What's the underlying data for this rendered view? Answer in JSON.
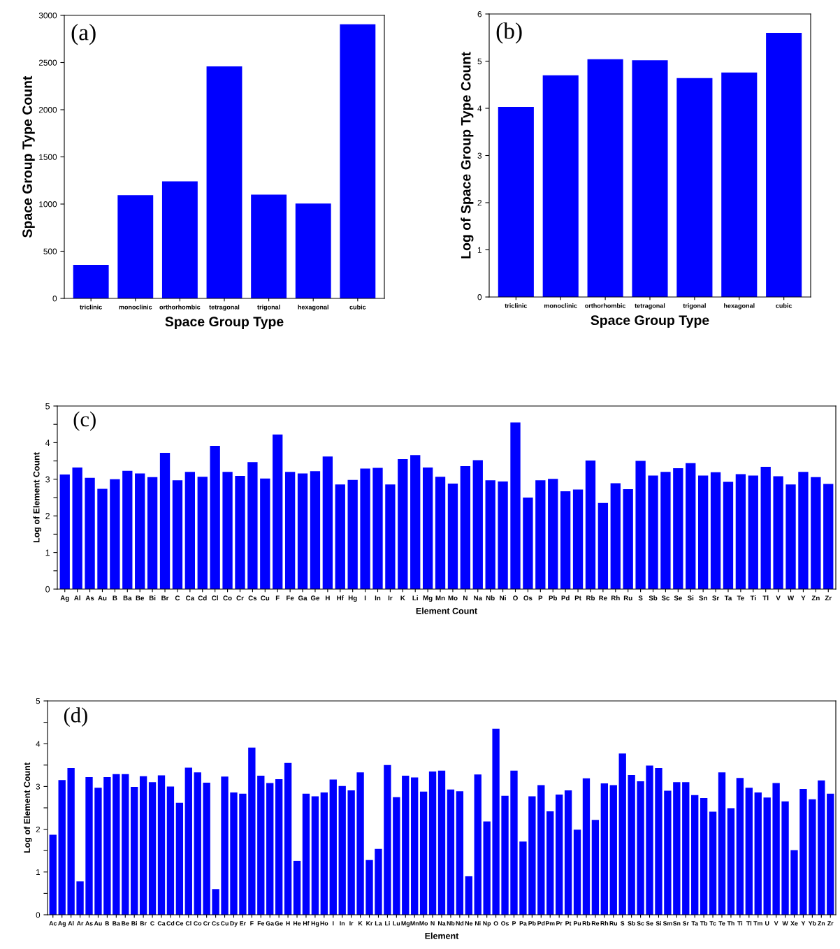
{
  "chart_data": [
    {
      "type": "bar",
      "ylabel": "Space Group Type Count",
      "xlabel": "Space Group Type",
      "annotations": [
        "(a)"
      ],
      "categories": [
        "triclinic",
        "monoclinic",
        "orthorhombic",
        "tetragonal",
        "trigonal",
        "hexagonal",
        "cubic"
      ],
      "values": [
        355,
        1095,
        1240,
        2460,
        1100,
        1005,
        2905
      ],
      "color": "#0000ff",
      "ylim": [
        0,
        3000
      ],
      "yticks": [
        0,
        500,
        1000,
        1500,
        2000,
        2500,
        3000
      ],
      "grid": false
    },
    {
      "type": "bar",
      "ylabel": "Log of Space Group Type Count",
      "xlabel": "Space Group Type",
      "annotations": [
        "(b)"
      ],
      "categories": [
        "triclinic",
        "monoclinic",
        "orthorhombic",
        "tetragonal",
        "trigonal",
        "hexagonal",
        "cubic"
      ],
      "values": [
        4.03,
        4.7,
        5.04,
        5.02,
        4.64,
        4.76,
        5.6
      ],
      "color": "#0000ff",
      "ylim": [
        0,
        6
      ],
      "yticks": [
        0,
        1,
        2,
        3,
        4,
        5,
        6
      ],
      "grid": false
    },
    {
      "type": "bar",
      "ylabel": "Log of Element Count",
      "xlabel": "Element Count",
      "annotations": [
        "(c)"
      ],
      "categories": [
        "Ag",
        "Al",
        "As",
        "Au",
        "B",
        "Ba",
        "Be",
        "Bi",
        "Br",
        "C",
        "Ca",
        "Cd",
        "Cl",
        "Co",
        "Cr",
        "Cs",
        "Cu",
        "F",
        "Fe",
        "Ga",
        "Ge",
        "H",
        "Hf",
        "Hg",
        "I",
        "In",
        "Ir",
        "K",
        "Li",
        "Mg",
        "Mn",
        "Mo",
        "N",
        "Na",
        "Nb",
        "Ni",
        "O",
        "Os",
        "P",
        "Pb",
        "Pd",
        "Pt",
        "Rb",
        "Re",
        "Rh",
        "Ru",
        "S",
        "Sb",
        "Sc",
        "Se",
        "Si",
        "Sn",
        "Sr",
        "Ta",
        "Te",
        "Ti",
        "Tl",
        "V",
        "W",
        "Y",
        "Zn",
        "Zr"
      ],
      "values": [
        3.13,
        3.32,
        3.04,
        2.74,
        3.0,
        3.23,
        3.16,
        3.06,
        3.72,
        2.97,
        3.2,
        3.07,
        3.91,
        3.2,
        3.09,
        3.47,
        3.02,
        4.22,
        3.2,
        3.16,
        3.22,
        3.62,
        2.86,
        2.98,
        3.29,
        3.31,
        2.86,
        3.55,
        3.66,
        3.32,
        3.07,
        2.88,
        3.36,
        3.52,
        2.97,
        2.94,
        4.55,
        2.5,
        2.97,
        3.01,
        2.67,
        2.72,
        3.51,
        2.35,
        2.89,
        2.73,
        3.5,
        3.1,
        3.2,
        3.3,
        3.44,
        3.1,
        3.19,
        2.93,
        3.14,
        3.1,
        3.34,
        3.08,
        2.86,
        3.2,
        3.06,
        2.87
      ],
      "color": "#0000ff",
      "ylim": [
        0,
        5
      ],
      "yticks": [
        0,
        {
          "value": 0.5,
          "label": null
        },
        1,
        {
          "value": 1.5,
          "label": null
        },
        2,
        {
          "value": 2.5,
          "label": null
        },
        3,
        {
          "value": 3.5,
          "label": null
        },
        4,
        {
          "value": 4.5,
          "label": null
        },
        5
      ],
      "grid": false
    },
    {
      "type": "bar",
      "ylabel": "Log of Element Count",
      "xlabel": "Element",
      "annotations": [
        "(d)"
      ],
      "categories": [
        "Ac",
        "Ag",
        "Al",
        "Ar",
        "As",
        "Au",
        "B",
        "Ba",
        "Be",
        "Bi",
        "Br",
        "C",
        "Ca",
        "Cd",
        "Ce",
        "Cl",
        "Co",
        "Cr",
        "Cs",
        "Cu",
        "Dy",
        "Er",
        "F",
        "Fe",
        "Ga",
        "Ge",
        "H",
        "He",
        "Hf",
        "Hg",
        "Ho",
        "I",
        "In",
        "Ir",
        "K",
        "Kr",
        "La",
        "Li",
        "Lu",
        "Mg",
        "Mn",
        "Mo",
        "N",
        "Na",
        "Nb",
        "Nd",
        "Ne",
        "Ni",
        "Np",
        "O",
        "Os",
        "P",
        "Pa",
        "Pb",
        "Pd",
        "Pm",
        "Pr",
        "Pt",
        "Pu",
        "Rb",
        "Re",
        "Rh",
        "Ru",
        "S",
        "Sb",
        "Sc",
        "Se",
        "Si",
        "Sm",
        "Sn",
        "Sr",
        "Ta",
        "Tb",
        "Tc",
        "Te",
        "Th",
        "Ti",
        "Tl",
        "Tm",
        "U",
        "V",
        "W",
        "Xe",
        "Y",
        "Yb",
        "Zn",
        "Zr"
      ],
      "values": [
        1.87,
        3.15,
        3.43,
        0.78,
        3.22,
        2.97,
        3.22,
        3.29,
        3.29,
        2.99,
        3.24,
        3.1,
        3.26,
        3.0,
        2.62,
        3.44,
        3.33,
        3.09,
        0.6,
        3.23,
        2.86,
        2.83,
        3.91,
        3.25,
        3.08,
        3.17,
        3.55,
        1.26,
        2.83,
        2.77,
        2.86,
        3.16,
        3.01,
        2.91,
        3.33,
        1.28,
        1.54,
        3.5,
        2.75,
        3.25,
        3.21,
        2.88,
        3.35,
        3.37,
        2.93,
        2.89,
        0.9,
        3.28,
        2.18,
        4.35,
        2.78,
        3.37,
        1.71,
        2.77,
        3.03,
        2.42,
        2.81,
        2.91,
        1.99,
        3.19,
        2.22,
        3.07,
        3.03,
        3.77,
        3.27,
        3.12,
        3.49,
        3.43,
        2.9,
        3.1,
        3.1,
        2.8,
        2.73,
        2.41,
        3.33,
        2.49,
        3.2,
        2.97,
        2.86,
        2.74,
        3.08,
        2.65,
        1.51,
        2.94,
        2.7,
        3.14,
        2.83
      ],
      "color": "#0000ff",
      "ylim": [
        0,
        5
      ],
      "yticks": [
        0,
        {
          "value": 0.5,
          "label": null
        },
        1,
        {
          "value": 1.5,
          "label": null
        },
        2,
        {
          "value": 2.5,
          "label": null
        },
        3,
        {
          "value": 3.5,
          "label": null
        },
        4,
        {
          "value": 4.5,
          "label": null
        },
        5
      ],
      "grid": false
    }
  ]
}
